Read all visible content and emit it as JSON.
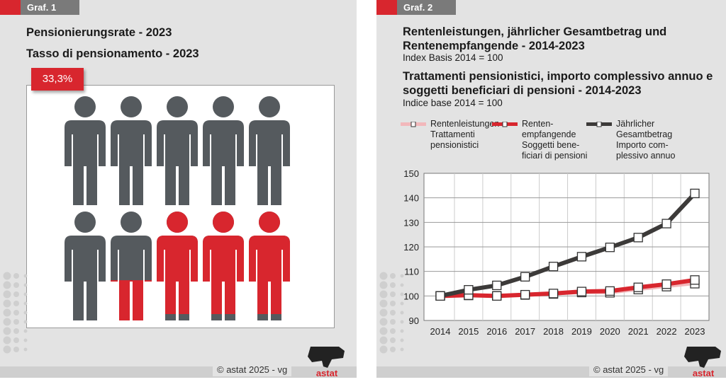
{
  "graf1": {
    "tag": "Graf. 1",
    "title_de": "Pensionierungsrate - 2023",
    "title_it": "Tasso di pensionamento - 2023",
    "badge": "33,3%",
    "chart_data": {
      "type": "pictogram",
      "title": "Pensionierungsrate - 2023",
      "value_percent": 33.3,
      "icons_total": 10,
      "icons_per_row": 5,
      "colors": {
        "filled": "#d8262e",
        "empty": "#555a5e"
      }
    }
  },
  "graf2": {
    "tag": "Graf. 2",
    "title_de": "Rentenleistungen, jährlicher Gesamtbetrag und Rentenempfangende - 2014-2023",
    "sub_de": "Index Basis 2014 = 100",
    "title_it": "Trattamenti pensionistici, importo complessivo annuo e soggetti beneficiari di pensioni - 2014-2023",
    "sub_it": "Indice base 2014 = 100",
    "legend": [
      {
        "lines": [
          "Rentenleistungen",
          "Trattamenti",
          "pensionistici"
        ],
        "color": "#f2b8bb"
      },
      {
        "lines": [
          "Renten-",
          "empfangende",
          "Soggetti bene-",
          "ficiari di pensioni"
        ],
        "color": "#d8262e"
      },
      {
        "lines": [
          "Jährlicher",
          "Gesamtbetrag",
          "Importo com-",
          "plessivo annuo"
        ],
        "color": "#3c3a39"
      }
    ],
    "chart_data": {
      "type": "line",
      "x": [
        2014,
        2015,
        2016,
        2017,
        2018,
        2019,
        2020,
        2021,
        2022,
        2023
      ],
      "ylim": [
        90,
        150
      ],
      "yticks": [
        90,
        100,
        110,
        120,
        130,
        140,
        150
      ],
      "grid": true,
      "series": [
        {
          "name": "Rentenleistungen / Trattamenti pensionistici",
          "color": "#f2b8bb",
          "values": [
            100,
            100.2,
            100,
            100.4,
            100.8,
            101.4,
            101.3,
            102.6,
            103.8,
            105
          ]
        },
        {
          "name": "Rentenempfangende / Soggetti beneficiari di pensioni",
          "color": "#d8262e",
          "values": [
            100,
            100.3,
            100,
            100.5,
            101,
            101.8,
            102,
            103.5,
            104.8,
            106.5
          ]
        },
        {
          "name": "Jährlicher Gesamtbetrag / Importo complessivo annuo",
          "color": "#3c3a39",
          "values": [
            100,
            102.5,
            104.3,
            107.8,
            112,
            116,
            119.8,
            123.8,
            129.5,
            141.8
          ]
        }
      ]
    }
  },
  "footer": {
    "copyright": "© astat 2025 - vg",
    "logo": "astat"
  }
}
